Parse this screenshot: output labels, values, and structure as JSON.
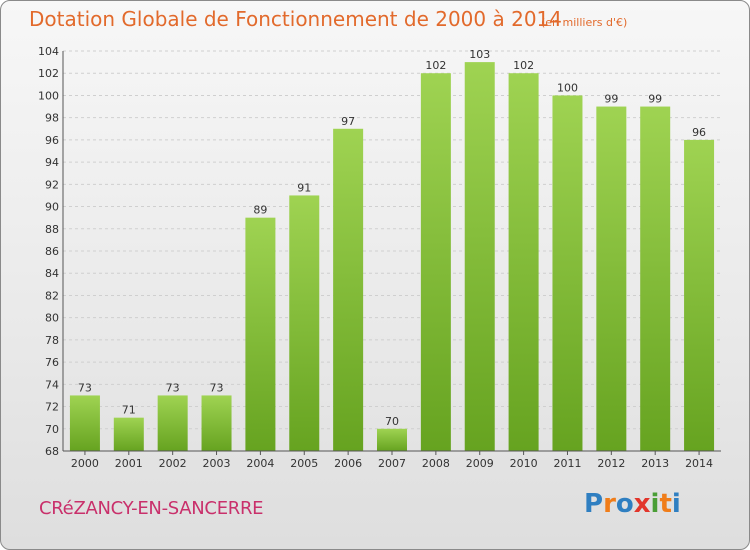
{
  "chart_data": {
    "type": "bar",
    "title": "Dotation Globale de Fonctionnement de 2000 à 2014",
    "subtitle": "(en milliers d'€)",
    "categories": [
      "2000",
      "2001",
      "2002",
      "2003",
      "2004",
      "2005",
      "2006",
      "2007",
      "2008",
      "2009",
      "2010",
      "2011",
      "2012",
      "2013",
      "2014"
    ],
    "values": [
      73,
      71,
      73,
      73,
      89,
      91,
      97,
      70,
      102,
      103,
      102,
      100,
      99,
      99,
      96
    ],
    "data_labels": [
      "73",
      "71",
      "73",
      "73",
      "89",
      "91",
      "97",
      "70",
      "102",
      "103",
      "102",
      "100",
      "99",
      "99",
      "96"
    ],
    "xlabel": "",
    "ylabel": "",
    "ylim": [
      68,
      104
    ],
    "yticks": [
      68,
      70,
      72,
      74,
      76,
      78,
      80,
      82,
      84,
      86,
      88,
      90,
      92,
      94,
      96,
      98,
      100,
      102,
      104
    ],
    "grid": true,
    "bar_color": "#8cc63f"
  },
  "footer": {
    "commune": "CRéZANCY-EN-SANCERRE",
    "logo_letters": [
      "P",
      "r",
      "o",
      "x",
      "i",
      "t",
      "i"
    ],
    "logo_colors": [
      "#2f7fc1",
      "#f07d19",
      "#2f7fc1",
      "#e2352b",
      "#4a9e36",
      "#f07d19",
      "#2f7fc1"
    ]
  }
}
